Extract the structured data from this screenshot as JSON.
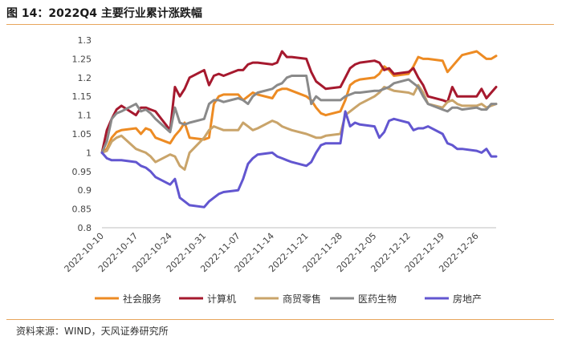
{
  "title": "图 14：2022Q4 主要行业累计涨跌幅",
  "source": "资料来源：WIND，天风证券研究所",
  "chart_data": {
    "type": "line",
    "title": "图 14：2022Q4 主要行业累计涨跌幅",
    "xlabel": "",
    "ylabel": "",
    "ylim": [
      0.8,
      1.3
    ],
    "yticks": [
      "0.8",
      "0.85",
      "0.9",
      "0.95",
      "1",
      "1.05",
      "1.1",
      "1.15",
      "1.2",
      "1.25",
      "1.3"
    ],
    "xticks": [
      "2022-10-10",
      "2022-10-17",
      "2022-10-24",
      "2022-10-31",
      "2022-11-07",
      "2022-11-14",
      "2022-11-21",
      "2022-11-28",
      "2022-12-05",
      "2022-12-12",
      "2022-12-19",
      "2022-12-26"
    ],
    "x_range": [
      "2022-10-10",
      "2022-12-30"
    ],
    "grid": false,
    "legend_position": "bottom",
    "series": [
      {
        "name": "社会服务",
        "color": "#ED8B23",
        "x": [
          "2022-10-10",
          "2022-10-11",
          "2022-10-12",
          "2022-10-13",
          "2022-10-14",
          "2022-10-17",
          "2022-10-18",
          "2022-10-19",
          "2022-10-20",
          "2022-10-21",
          "2022-10-24",
          "2022-10-25",
          "2022-10-26",
          "2022-10-27",
          "2022-10-28",
          "2022-10-31",
          "2022-11-01",
          "2022-11-02",
          "2022-11-03",
          "2022-11-04",
          "2022-11-07",
          "2022-11-08",
          "2022-11-09",
          "2022-11-10",
          "2022-11-11",
          "2022-11-14",
          "2022-11-15",
          "2022-11-16",
          "2022-11-17",
          "2022-11-18",
          "2022-11-21",
          "2022-11-22",
          "2022-11-23",
          "2022-11-24",
          "2022-11-25",
          "2022-11-28",
          "2022-11-29",
          "2022-11-30",
          "2022-12-01",
          "2022-12-02",
          "2022-12-05",
          "2022-12-06",
          "2022-12-07",
          "2022-12-08",
          "2022-12-09",
          "2022-12-12",
          "2022-12-13",
          "2022-12-14",
          "2022-12-15",
          "2022-12-16",
          "2022-12-19",
          "2022-12-20",
          "2022-12-21",
          "2022-12-22",
          "2022-12-23",
          "2022-12-26",
          "2022-12-27",
          "2022-12-28",
          "2022-12-29",
          "2022-12-30"
        ],
        "y": [
          1.0,
          1.01,
          1.04,
          1.055,
          1.06,
          1.065,
          1.05,
          1.065,
          1.06,
          1.04,
          1.025,
          1.045,
          1.06,
          1.08,
          1.04,
          1.035,
          1.04,
          1.13,
          1.15,
          1.155,
          1.155,
          1.14,
          1.15,
          1.16,
          1.155,
          1.145,
          1.165,
          1.17,
          1.17,
          1.165,
          1.15,
          1.14,
          1.12,
          1.105,
          1.1,
          1.11,
          1.14,
          1.18,
          1.19,
          1.195,
          1.2,
          1.21,
          1.23,
          1.22,
          1.205,
          1.21,
          1.23,
          1.255,
          1.25,
          1.25,
          1.245,
          1.215,
          1.23,
          1.245,
          1.26,
          1.27,
          1.26,
          1.25,
          1.25,
          1.258
        ]
      },
      {
        "name": "计算机",
        "color": "#A6192E",
        "x": [
          "2022-10-10",
          "2022-10-11",
          "2022-10-12",
          "2022-10-13",
          "2022-10-14",
          "2022-10-17",
          "2022-10-18",
          "2022-10-19",
          "2022-10-20",
          "2022-10-21",
          "2022-10-24",
          "2022-10-25",
          "2022-10-26",
          "2022-10-27",
          "2022-10-28",
          "2022-10-31",
          "2022-11-01",
          "2022-11-02",
          "2022-11-03",
          "2022-11-04",
          "2022-11-07",
          "2022-11-08",
          "2022-11-09",
          "2022-11-10",
          "2022-11-11",
          "2022-11-14",
          "2022-11-15",
          "2022-11-16",
          "2022-11-17",
          "2022-11-18",
          "2022-11-21",
          "2022-11-22",
          "2022-11-23",
          "2022-11-24",
          "2022-11-25",
          "2022-11-28",
          "2022-11-29",
          "2022-11-30",
          "2022-12-01",
          "2022-12-02",
          "2022-12-05",
          "2022-12-06",
          "2022-12-07",
          "2022-12-08",
          "2022-12-09",
          "2022-12-12",
          "2022-12-13",
          "2022-12-14",
          "2022-12-15",
          "2022-12-16",
          "2022-12-19",
          "2022-12-20",
          "2022-12-21",
          "2022-12-22",
          "2022-12-23",
          "2022-12-26",
          "2022-12-27",
          "2022-12-28",
          "2022-12-29",
          "2022-12-30"
        ],
        "y": [
          1.0,
          1.06,
          1.09,
          1.115,
          1.125,
          1.1,
          1.12,
          1.12,
          1.115,
          1.11,
          1.06,
          1.175,
          1.15,
          1.17,
          1.2,
          1.22,
          1.18,
          1.205,
          1.21,
          1.205,
          1.22,
          1.22,
          1.235,
          1.24,
          1.24,
          1.235,
          1.24,
          1.27,
          1.255,
          1.255,
          1.25,
          1.215,
          1.19,
          1.18,
          1.17,
          1.175,
          1.2,
          1.225,
          1.235,
          1.24,
          1.245,
          1.24,
          1.22,
          1.225,
          1.21,
          1.215,
          1.225,
          1.2,
          1.18,
          1.15,
          1.14,
          1.135,
          1.175,
          1.15,
          1.15,
          1.15,
          1.17,
          1.145,
          1.16,
          1.175
        ]
      },
      {
        "name": "商贸零售",
        "color": "#C9A46A",
        "x": [
          "2022-10-10",
          "2022-10-11",
          "2022-10-12",
          "2022-10-13",
          "2022-10-14",
          "2022-10-17",
          "2022-10-18",
          "2022-10-19",
          "2022-10-20",
          "2022-10-21",
          "2022-10-24",
          "2022-10-25",
          "2022-10-26",
          "2022-10-27",
          "2022-10-28",
          "2022-10-31",
          "2022-11-01",
          "2022-11-02",
          "2022-11-03",
          "2022-11-04",
          "2022-11-07",
          "2022-11-08",
          "2022-11-09",
          "2022-11-10",
          "2022-11-11",
          "2022-11-14",
          "2022-11-15",
          "2022-11-16",
          "2022-11-17",
          "2022-11-18",
          "2022-11-21",
          "2022-11-22",
          "2022-11-23",
          "2022-11-24",
          "2022-11-25",
          "2022-11-28",
          "2022-11-29",
          "2022-11-30",
          "2022-12-01",
          "2022-12-02",
          "2022-12-05",
          "2022-12-06",
          "2022-12-07",
          "2022-12-08",
          "2022-12-09",
          "2022-12-12",
          "2022-12-13",
          "2022-12-14",
          "2022-12-15",
          "2022-12-16",
          "2022-12-19",
          "2022-12-20",
          "2022-12-21",
          "2022-12-22",
          "2022-12-23",
          "2022-12-26",
          "2022-12-27",
          "2022-12-28",
          "2022-12-29",
          "2022-12-30"
        ],
        "y": [
          1.0,
          1.005,
          1.03,
          1.04,
          1.045,
          1.01,
          1.005,
          1.0,
          0.99,
          0.975,
          0.995,
          0.99,
          0.965,
          0.955,
          1.0,
          1.04,
          1.06,
          1.07,
          1.065,
          1.06,
          1.06,
          1.08,
          1.07,
          1.06,
          1.065,
          1.085,
          1.08,
          1.07,
          1.065,
          1.06,
          1.05,
          1.045,
          1.04,
          1.04,
          1.045,
          1.05,
          1.1,
          1.11,
          1.12,
          1.13,
          1.15,
          1.16,
          1.175,
          1.17,
          1.165,
          1.16,
          1.155,
          1.18,
          1.16,
          1.13,
          1.12,
          1.135,
          1.14,
          1.13,
          1.125,
          1.125,
          1.13,
          1.12,
          1.125,
          1.13
        ]
      },
      {
        "name": "医药生物",
        "color": "#8A8A8A",
        "x": [
          "2022-10-10",
          "2022-10-11",
          "2022-10-12",
          "2022-10-13",
          "2022-10-14",
          "2022-10-17",
          "2022-10-18",
          "2022-10-19",
          "2022-10-20",
          "2022-10-21",
          "2022-10-24",
          "2022-10-25",
          "2022-10-26",
          "2022-10-27",
          "2022-10-28",
          "2022-10-31",
          "2022-11-01",
          "2022-11-02",
          "2022-11-03",
          "2022-11-04",
          "2022-11-07",
          "2022-11-08",
          "2022-11-09",
          "2022-11-10",
          "2022-11-11",
          "2022-11-14",
          "2022-11-15",
          "2022-11-16",
          "2022-11-17",
          "2022-11-18",
          "2022-11-21",
          "2022-11-22",
          "2022-11-23",
          "2022-11-24",
          "2022-11-25",
          "2022-11-28",
          "2022-11-29",
          "2022-11-30",
          "2022-12-01",
          "2022-12-02",
          "2022-12-05",
          "2022-12-06",
          "2022-12-07",
          "2022-12-08",
          "2022-12-09",
          "2022-12-12",
          "2022-12-13",
          "2022-12-14",
          "2022-12-15",
          "2022-12-16",
          "2022-12-19",
          "2022-12-20",
          "2022-12-21",
          "2022-12-22",
          "2022-12-23",
          "2022-12-26",
          "2022-12-27",
          "2022-12-28",
          "2022-12-29",
          "2022-12-30"
        ],
        "y": [
          1.0,
          1.03,
          1.09,
          1.105,
          1.11,
          1.13,
          1.11,
          1.115,
          1.105,
          1.09,
          1.055,
          1.12,
          1.08,
          1.075,
          1.08,
          1.09,
          1.13,
          1.14,
          1.14,
          1.135,
          1.145,
          1.14,
          1.13,
          1.15,
          1.16,
          1.17,
          1.18,
          1.185,
          1.2,
          1.205,
          1.205,
          1.13,
          1.15,
          1.14,
          1.14,
          1.14,
          1.15,
          1.155,
          1.16,
          1.16,
          1.165,
          1.165,
          1.17,
          1.175,
          1.185,
          1.195,
          1.185,
          1.175,
          1.15,
          1.13,
          1.115,
          1.11,
          1.12,
          1.12,
          1.115,
          1.12,
          1.115,
          1.115,
          1.13,
          1.13
        ]
      },
      {
        "name": "房地产",
        "color": "#6256D0",
        "x": [
          "2022-10-10",
          "2022-10-11",
          "2022-10-12",
          "2022-10-13",
          "2022-10-14",
          "2022-10-17",
          "2022-10-18",
          "2022-10-19",
          "2022-10-20",
          "2022-10-21",
          "2022-10-24",
          "2022-10-25",
          "2022-10-26",
          "2022-10-27",
          "2022-10-28",
          "2022-10-31",
          "2022-11-01",
          "2022-11-02",
          "2022-11-03",
          "2022-11-04",
          "2022-11-07",
          "2022-11-08",
          "2022-11-09",
          "2022-11-10",
          "2022-11-11",
          "2022-11-14",
          "2022-11-15",
          "2022-11-16",
          "2022-11-17",
          "2022-11-18",
          "2022-11-21",
          "2022-11-22",
          "2022-11-23",
          "2022-11-24",
          "2022-11-25",
          "2022-11-28",
          "2022-11-29",
          "2022-11-30",
          "2022-12-01",
          "2022-12-02",
          "2022-12-05",
          "2022-12-06",
          "2022-12-07",
          "2022-12-08",
          "2022-12-09",
          "2022-12-12",
          "2022-12-13",
          "2022-12-14",
          "2022-12-15",
          "2022-12-16",
          "2022-12-19",
          "2022-12-20",
          "2022-12-21",
          "2022-12-22",
          "2022-12-23",
          "2022-12-26",
          "2022-12-27",
          "2022-12-28",
          "2022-12-29",
          "2022-12-30"
        ],
        "y": [
          1.0,
          0.985,
          0.98,
          0.98,
          0.98,
          0.975,
          0.965,
          0.96,
          0.95,
          0.935,
          0.915,
          0.93,
          0.88,
          0.87,
          0.86,
          0.855,
          0.87,
          0.88,
          0.89,
          0.895,
          0.9,
          0.93,
          0.97,
          0.985,
          0.995,
          1.0,
          0.99,
          0.985,
          0.98,
          0.975,
          0.965,
          0.975,
          1.0,
          1.02,
          1.025,
          1.025,
          1.11,
          1.07,
          1.08,
          1.075,
          1.07,
          1.04,
          1.055,
          1.085,
          1.09,
          1.08,
          1.06,
          1.065,
          1.065,
          1.07,
          1.05,
          1.025,
          1.02,
          1.01,
          1.01,
          1.005,
          1.0,
          1.01,
          0.99,
          0.99
        ]
      }
    ]
  }
}
